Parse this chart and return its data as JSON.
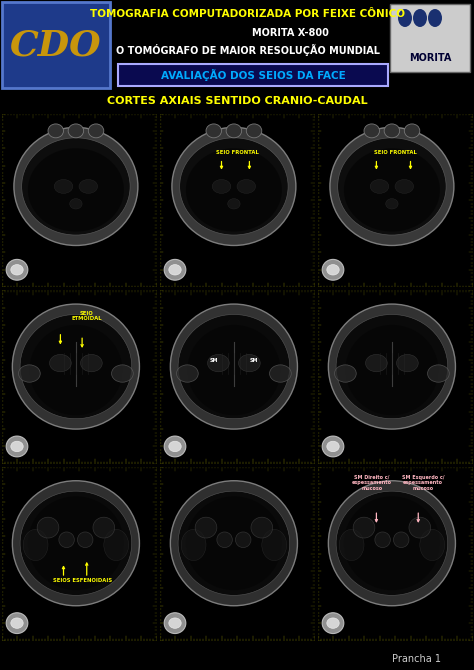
{
  "bg_color": "#000000",
  "header_line1": "TOMOGRAFIA COMPUTADORIZADA POR FEIXE CÔNICO",
  "header_line2": "MORITA X-800",
  "header_line3": "O TOMÓGRAFO DE MAIOR RESOLUÇÃO MUNDIAL",
  "header_line1_color": "#ffff00",
  "header_line2_color": "#ffffff",
  "header_line3_color": "#ffffff",
  "cdo_bg": "#1e3a8a",
  "cdo_text": "CDO",
  "cdo_text_color": "#c8960c",
  "subtitle_box_bg": "#0a0a50",
  "subtitle_box_border": "#aaaaff",
  "subtitle_text": "AVALIAÇÃO DOS SEIOS DA FACE",
  "subtitle_text_color": "#00aaff",
  "section_title": "CORTES AXIAIS SENTIDO CRANIO-CAUDAL",
  "section_title_color": "#ffff00",
  "ruler_color": "#808000",
  "annotation_yellow": "#ffff00",
  "annotation_pink": "#ffb6c1",
  "footer_text": "Prancha 1",
  "footer_color": "#cccccc",
  "morita_bg": "#cccccc",
  "morita_text_color": "#000033",
  "morita_circle_color": "#1a3070",
  "cell_bg": "#111111",
  "skull_edge_color": "#999999",
  "skull_fill": "#222222",
  "inner_fill": "#0a0a0a"
}
